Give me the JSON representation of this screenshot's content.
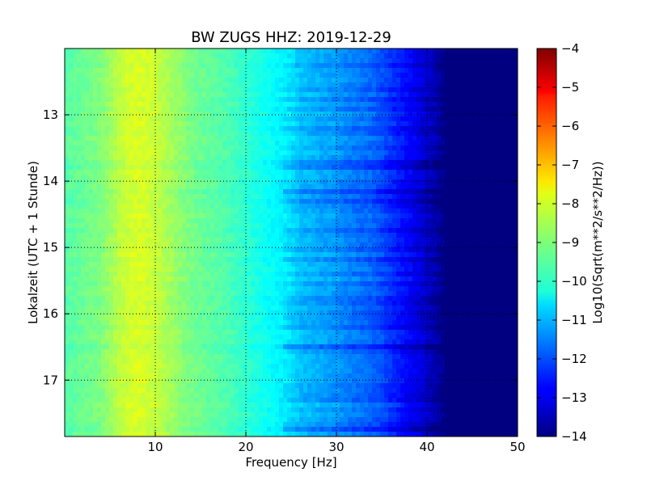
{
  "chart_data": {
    "type": "heatmap",
    "title": "BW ZUGS HHZ: 2019-12-29",
    "xlabel": "Frequency [Hz]",
    "ylabel": "Lokalzeit (UTC + 1 Stunde)",
    "xlim": [
      0,
      50
    ],
    "ylim": [
      12.0,
      17.85
    ],
    "y_inverted": true,
    "x_ticks": [
      10,
      20,
      30,
      40,
      50
    ],
    "y_ticks": [
      13,
      14,
      15,
      16,
      17
    ],
    "grid": true,
    "colormap": "jet",
    "colorbar": {
      "label": "Log10(Sqrt(m**2/s**2/Hz))",
      "range": [
        -14,
        -4
      ],
      "ticks": [
        -14,
        -13,
        -12,
        -11,
        -10,
        -9,
        -8,
        -7,
        -6,
        -5,
        -4
      ]
    },
    "frequency_profile": {
      "frequency_hz": [
        0,
        2,
        4,
        6,
        8,
        10,
        12,
        14,
        16,
        18,
        20,
        22,
        24,
        25,
        26,
        28,
        30,
        32,
        34,
        36,
        38,
        40,
        41,
        42,
        44,
        46,
        48,
        50
      ],
      "log10_psd": [
        -9.4,
        -9.2,
        -9.0,
        -8.4,
        -8.1,
        -8.3,
        -8.7,
        -9.1,
        -9.3,
        -9.5,
        -9.8,
        -10.1,
        -10.4,
        -10.6,
        -10.9,
        -11.1,
        -11.3,
        -11.6,
        -11.8,
        -12.3,
        -12.8,
        -13.3,
        -13.6,
        -14.0,
        -14.0,
        -14.0,
        -14.0,
        -14.0
      ]
    }
  }
}
